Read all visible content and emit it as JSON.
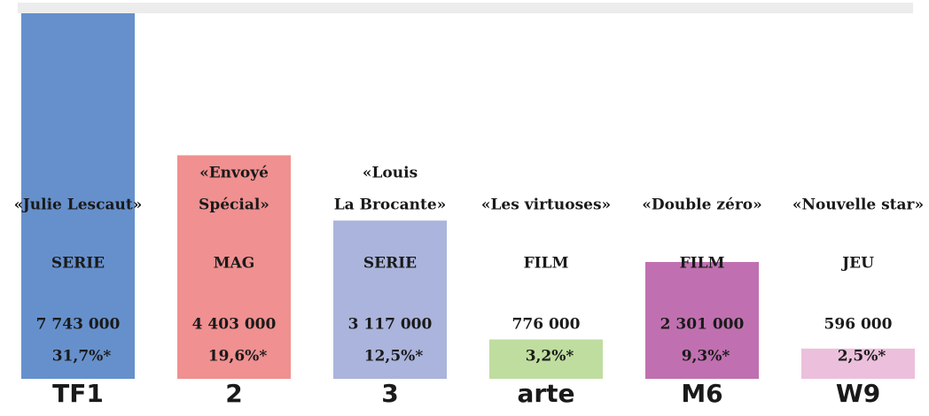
{
  "chart_data": {
    "type": "bar",
    "categories": [
      "TF1",
      "2",
      "3",
      "arte",
      "M6",
      "W9"
    ],
    "programs": [
      [
        "«Julie Lescaut»"
      ],
      [
        "«Envoyé",
        "Spécial»"
      ],
      [
        "«Louis",
        "La Brocante»"
      ],
      [
        "«Les virtuoses»"
      ],
      [
        "«Double zéro»"
      ],
      [
        "«Nouvelle star»"
      ]
    ],
    "genres": [
      "SERIE",
      "MAG",
      "SERIE",
      "FILM",
      "FILM",
      "JEU"
    ],
    "values": [
      7743000,
      4403000,
      3117000,
      776000,
      2301000,
      596000
    ],
    "value_labels": [
      "7 743 000",
      "4 403 000",
      "3 117 000",
      "776 000",
      "2 301 000",
      "596 000"
    ],
    "shares": [
      31.7,
      19.6,
      12.5,
      3.2,
      9.3,
      2.5
    ],
    "share_labels": [
      "31,7%*",
      "19,6%*",
      "12,5%*",
      "3,2%*",
      "9,3%*",
      "2,5%*"
    ],
    "colors": [
      "#6690cc",
      "#f09090",
      "#aab4dc",
      "#c0dda0",
      "#c070b0",
      "#ecc0dc"
    ],
    "logo_colors": [
      "#1a3c8c",
      "#e8262a",
      "#1a5aa8",
      "#f07a10",
      "#1a1a1a",
      "#6a2a8c"
    ],
    "ylim": [
      0,
      7200000
    ]
  }
}
